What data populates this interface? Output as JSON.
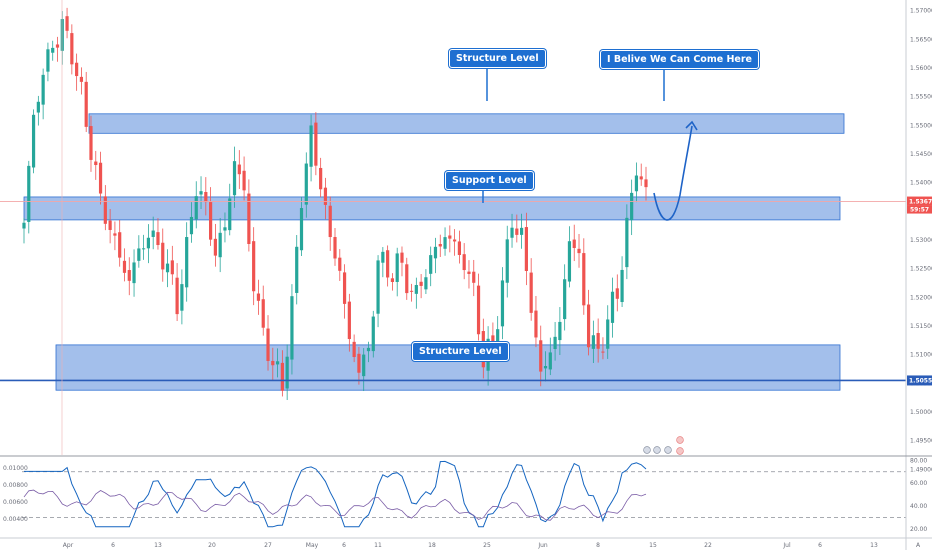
{
  "chart_data": {
    "type": "candlestick",
    "y_range": [
      1.4925,
      1.5715
    ],
    "y_ticks": [
      "1.57000",
      "1.56500",
      "1.56000",
      "1.55500",
      "1.55000",
      "1.54500",
      "1.54000",
      "1.53500",
      "1.53000",
      "1.52500",
      "1.52000",
      "1.51500",
      "1.51000",
      "1.50500",
      "1.50000",
      "1.49500",
      "1.49000"
    ],
    "x_ticks": [
      "Apr",
      "6",
      "13",
      "20",
      "27",
      "May",
      "6",
      "11",
      "18",
      "25",
      "Jun",
      "8",
      "15",
      "22",
      "Jul",
      "6",
      "13"
    ],
    "price_labels": {
      "last_price": "1.53670",
      "countdown": "59:57",
      "hline_price": "1.50550"
    },
    "zones": [
      {
        "name": "upper-structure-zone",
        "top": 1.552,
        "bottom": 1.5486
      },
      {
        "name": "support-zone",
        "top": 1.5375,
        "bottom": 1.5335
      },
      {
        "name": "lower-structure-zone",
        "top": 1.5117,
        "bottom": 1.5038
      }
    ],
    "horizontal_line": 1.5055,
    "last_price_line": 1.5367,
    "callouts": {
      "structure_top": "Structure Level",
      "projection": "I Belive We Can Come Here",
      "support": "Support Level",
      "structure_bottom": "Structure Level"
    },
    "candles_anchors": [
      [
        0,
        1.533
      ],
      [
        2,
        1.5515
      ],
      [
        4,
        1.559
      ],
      [
        6,
        1.564
      ],
      [
        8,
        1.567
      ],
      [
        10,
        1.563
      ],
      [
        12,
        1.555
      ],
      [
        14,
        1.546
      ],
      [
        16,
        1.537
      ],
      [
        18,
        1.532
      ],
      [
        20,
        1.527
      ],
      [
        22,
        1.523
      ],
      [
        24,
        1.528
      ],
      [
        26,
        1.531
      ],
      [
        28,
        1.529
      ],
      [
        30,
        1.525
      ],
      [
        32,
        1.519
      ],
      [
        34,
        1.528
      ],
      [
        36,
        1.54
      ],
      [
        38,
        1.535
      ],
      [
        40,
        1.528
      ],
      [
        42,
        1.532
      ],
      [
        44,
        1.544
      ],
      [
        46,
        1.538
      ],
      [
        48,
        1.522
      ],
      [
        50,
        1.514
      ],
      [
        52,
        1.508
      ],
      [
        54,
        1.505
      ],
      [
        56,
        1.518
      ],
      [
        58,
        1.538
      ],
      [
        60,
        1.548
      ],
      [
        62,
        1.54
      ],
      [
        64,
        1.53
      ],
      [
        66,
        1.525
      ],
      [
        68,
        1.512
      ],
      [
        70,
        1.508
      ],
      [
        72,
        1.51
      ],
      [
        74,
        1.527
      ],
      [
        76,
        1.524
      ],
      [
        78,
        1.526
      ],
      [
        80,
        1.523
      ],
      [
        82,
        1.52
      ],
      [
        84,
        1.525
      ],
      [
        86,
        1.528
      ],
      [
        88,
        1.531
      ],
      [
        90,
        1.529
      ],
      [
        92,
        1.526
      ],
      [
        94,
        1.521
      ],
      [
        96,
        1.509
      ],
      [
        98,
        1.512
      ],
      [
        100,
        1.522
      ],
      [
        102,
        1.534
      ],
      [
        104,
        1.53
      ],
      [
        106,
        1.519
      ],
      [
        108,
        1.506
      ],
      [
        110,
        1.511
      ],
      [
        112,
        1.515
      ],
      [
        114,
        1.531
      ],
      [
        116,
        1.526
      ],
      [
        118,
        1.513
      ],
      [
        120,
        1.51
      ],
      [
        122,
        1.516
      ],
      [
        124,
        1.521
      ],
      [
        126,
        1.532
      ],
      [
        128,
        1.543
      ],
      [
        130,
        1.538
      ]
    ],
    "indicator": {
      "left_ticks": [
        "0.01000",
        "0.00800",
        "0.00600",
        "0.00400"
      ],
      "right_ticks": [
        "80.00",
        "60.00",
        "40.00",
        "20.00"
      ],
      "upper_line": 70,
      "lower_line": 30
    },
    "colors": {
      "up": "#26a69a",
      "down": "#ef5350",
      "zone_fill": "#8fb1e6",
      "zone_border": "#2e6fd1",
      "callout": "#1e6fd1",
      "hline": "#2a5cb8",
      "price_line": "#f3a6a6",
      "rsi": "#1565c0",
      "atr": "#7b5ea7"
    }
  },
  "toolbar": {
    "axis_corner": "A"
  }
}
